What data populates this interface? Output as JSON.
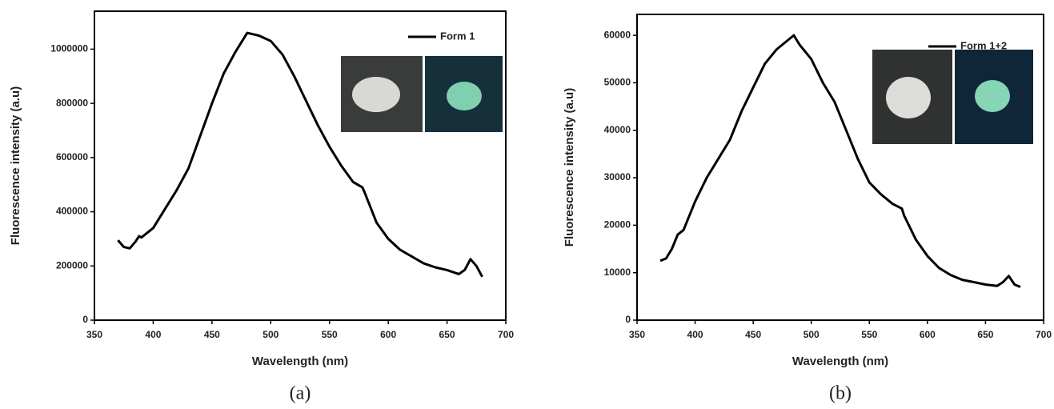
{
  "chart_data": [
    {
      "type": "line",
      "x_label": "Wavelength (nm)",
      "y_label": "Fluorescence intensity (a.u)",
      "caption": "(a)",
      "xlim": [
        350,
        700
      ],
      "xticks": [
        350,
        400,
        450,
        500,
        550,
        600,
        650,
        700
      ],
      "ylim": [
        0,
        1140000
      ],
      "yticks": [
        0,
        200000,
        400000,
        600000,
        800000,
        1000000
      ],
      "legend": "upper right",
      "x": [
        370,
        375,
        380,
        385,
        388,
        390,
        400,
        410,
        420,
        430,
        440,
        450,
        460,
        470,
        480,
        490,
        500,
        510,
        520,
        530,
        540,
        550,
        560,
        570,
        578,
        580,
        590,
        600,
        610,
        620,
        630,
        640,
        650,
        660,
        665,
        670,
        675,
        680
      ],
      "series": [
        {
          "name": "Form 1",
          "color": "#000000",
          "values": [
            295000,
            270000,
            265000,
            290000,
            310000,
            305000,
            340000,
            410000,
            480000,
            560000,
            680000,
            800000,
            910000,
            990000,
            1060000,
            1050000,
            1030000,
            980000,
            900000,
            810000,
            720000,
            640000,
            570000,
            510000,
            490000,
            470000,
            360000,
            300000,
            260000,
            235000,
            210000,
            195000,
            185000,
            170000,
            185000,
            225000,
            200000,
            160000
          ]
        }
      ]
    },
    {
      "type": "line",
      "x_label": "Wavelength (nm)",
      "y_label": "Fluorescence intensity (a.u)",
      "caption": "(b)",
      "xlim": [
        350,
        700
      ],
      "xticks": [
        350,
        400,
        450,
        500,
        550,
        600,
        650,
        700
      ],
      "ylim": [
        0,
        64400
      ],
      "yticks": [
        0,
        10000,
        20000,
        30000,
        40000,
        50000,
        60000
      ],
      "legend": "upper right",
      "x": [
        370,
        375,
        380,
        385,
        390,
        400,
        410,
        420,
        430,
        440,
        450,
        460,
        470,
        480,
        485,
        490,
        500,
        510,
        520,
        530,
        540,
        550,
        560,
        570,
        578,
        580,
        590,
        600,
        610,
        620,
        630,
        640,
        650,
        660,
        665,
        670,
        675,
        680
      ],
      "series": [
        {
          "name": "Form 1+2",
          "color": "#000000",
          "values": [
            12500,
            13000,
            15000,
            18000,
            19000,
            25000,
            30000,
            34000,
            38000,
            44000,
            49000,
            54000,
            57000,
            59000,
            60000,
            58000,
            55000,
            50000,
            46000,
            40000,
            34000,
            29000,
            26500,
            24500,
            23500,
            22000,
            17000,
            13500,
            11000,
            9500,
            8500,
            8000,
            7500,
            7200,
            8000,
            9300,
            7500,
            7000
          ]
        }
      ]
    }
  ]
}
